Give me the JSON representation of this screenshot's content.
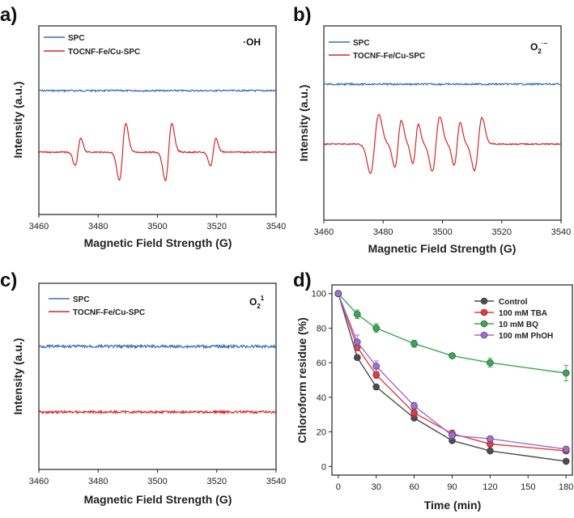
{
  "panels": [
    {
      "label": "a)",
      "type": "line",
      "species": {
        "main": "·OH",
        "sub": "",
        "sup": ""
      },
      "xlabel": "Magnetic Field Strength (G)",
      "ylabel": "Intensity (a.u.)",
      "xlim": [
        3460,
        3540
      ],
      "xticks": [
        "3460",
        "3480",
        "3500",
        "3520",
        "3540"
      ],
      "legend": [
        {
          "name": "SPC",
          "color": "#3b6fb6"
        },
        {
          "name": "TOCNF-Fe/Cu-SPC",
          "color": "#d62728"
        }
      ]
    },
    {
      "label": "b)",
      "type": "line",
      "species": {
        "main": "O",
        "sub": "2",
        "sup": "·−"
      },
      "xlabel": "Magnetic Field Strength (G)",
      "ylabel": "Intensity (a.u.)",
      "xlim": [
        3460,
        3540
      ],
      "xticks": [
        "3460",
        "3480",
        "3500",
        "3520",
        "3540"
      ],
      "legend": [
        {
          "name": "SPC",
          "color": "#3b6fb6"
        },
        {
          "name": "TOCNF-Fe/Cu-SPC",
          "color": "#d62728"
        }
      ]
    },
    {
      "label": "c)",
      "type": "line",
      "species": {
        "main": "O",
        "sub": "2",
        "sup": "1"
      },
      "xlabel": "Magnetic Field Strength (G)",
      "ylabel": "Intensity (a.u.)",
      "xlim": [
        3460,
        3540
      ],
      "xticks": [
        "3460",
        "3480",
        "3500",
        "3520",
        "3540"
      ],
      "legend": [
        {
          "name": "SPC",
          "color": "#3b6fb6"
        },
        {
          "name": "TOCNF-Fe/Cu-SPC",
          "color": "#d62728"
        }
      ]
    }
  ],
  "chart_data": {
    "type": "line",
    "label": "d)",
    "xlabel": "Time (min)",
    "ylabel": "Chloroform residue (%)",
    "xlim": [
      -5,
      185
    ],
    "ylim": [
      -5,
      105
    ],
    "x": [
      0,
      15,
      30,
      60,
      90,
      120,
      180
    ],
    "xticks": [
      "0",
      "30",
      "60",
      "90",
      "120",
      "150",
      "180"
    ],
    "yticks": [
      "0",
      "20",
      "40",
      "60",
      "80",
      "100"
    ],
    "series": [
      {
        "name": "Control",
        "color": "#4d4d4d",
        "values": [
          100,
          63,
          46,
          28,
          15,
          9,
          3
        ],
        "err": [
          0,
          0,
          0,
          0,
          0,
          0,
          0
        ]
      },
      {
        "name": "100 mM TBA",
        "color": "#e8383d",
        "values": [
          100,
          69,
          53,
          31,
          19,
          13,
          9
        ],
        "err": [
          0,
          2,
          2,
          2,
          2,
          1.5,
          1.5
        ]
      },
      {
        "name": "10 mM BQ",
        "color": "#3aa856",
        "values": [
          100,
          88,
          80,
          71,
          64,
          60,
          54
        ],
        "err": [
          0,
          2.5,
          2.5,
          2,
          1,
          2.5,
          4.5
        ]
      },
      {
        "name": "100 mM PhOH",
        "color": "#9c6fd3",
        "values": [
          100,
          72,
          58,
          35,
          18,
          16,
          10
        ],
        "err": [
          0,
          4,
          3,
          2,
          2,
          1.5,
          1
        ]
      }
    ]
  }
}
